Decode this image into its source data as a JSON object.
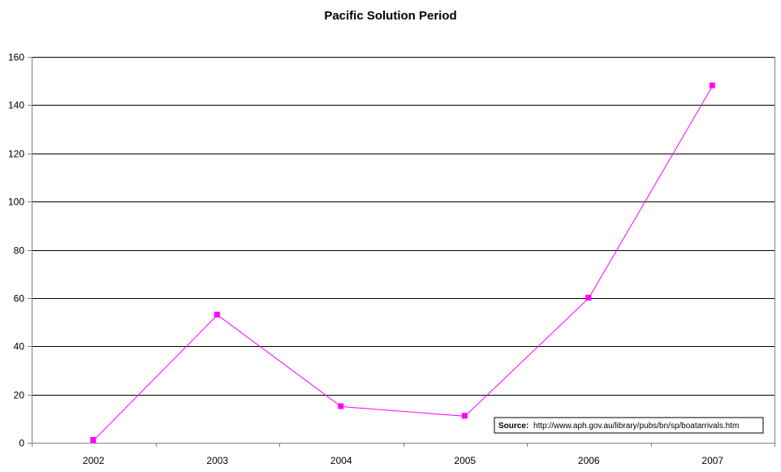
{
  "chart_data": {
    "type": "line",
    "title": "Pacific Solution Period",
    "xlabel": "",
    "ylabel": "",
    "categories": [
      "2002",
      "2003",
      "2004",
      "2005",
      "2006",
      "2007"
    ],
    "series": [
      {
        "values": [
          1,
          53,
          15,
          11,
          60,
          148
        ],
        "color": "#ff00ff"
      }
    ],
    "ylim": [
      0,
      160
    ],
    "yticks": [
      "0",
      "20",
      "40",
      "60",
      "80",
      "100",
      "120",
      "140",
      "160"
    ],
    "grid": true,
    "legend": "none"
  },
  "annotation": {
    "label": "Source:",
    "text": "http://www.aph.gov.au/library/pubs/bn/sp/boatarrivals.htm"
  }
}
